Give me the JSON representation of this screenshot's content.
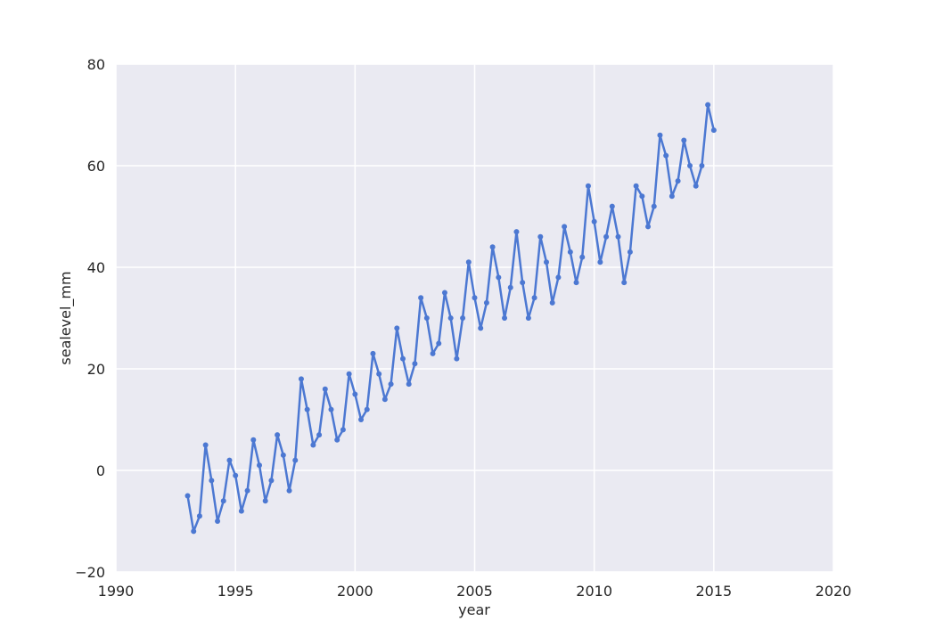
{
  "chart_data": {
    "type": "line",
    "x_label": "year",
    "y_label": "sealevel_mm",
    "xlim": [
      1990,
      2020
    ],
    "xticks": [
      1990,
      1995,
      2000,
      2005,
      2010,
      2015,
      2020
    ],
    "ylim": [
      -20,
      80
    ],
    "yticks": [
      {
        "value": -20,
        "label": "−20"
      },
      0,
      20,
      40,
      60,
      80
    ],
    "grid": true,
    "markers": true,
    "x": [
      1993.0,
      1993.25,
      1993.5,
      1993.75,
      1994.0,
      1994.25,
      1994.5,
      1994.75,
      1995.0,
      1995.25,
      1995.5,
      1995.75,
      1996.0,
      1996.25,
      1996.5,
      1996.75,
      1997.0,
      1997.25,
      1997.5,
      1997.75,
      1998.0,
      1998.25,
      1998.5,
      1998.75,
      1999.0,
      1999.25,
      1999.5,
      1999.75,
      2000.0,
      2000.25,
      2000.5,
      2000.75,
      2001.0,
      2001.25,
      2001.5,
      2001.75,
      2002.0,
      2002.25,
      2002.5,
      2002.75,
      2003.0,
      2003.25,
      2003.5,
      2003.75,
      2004.0,
      2004.25,
      2004.5,
      2004.75,
      2005.0,
      2005.25,
      2005.5,
      2005.75,
      2006.0,
      2006.25,
      2006.5,
      2006.75,
      2007.0,
      2007.25,
      2007.5,
      2007.75,
      2008.0,
      2008.25,
      2008.5,
      2008.75,
      2009.0,
      2009.25,
      2009.5,
      2009.75,
      2010.0,
      2010.25,
      2010.5,
      2010.75,
      2011.0,
      2011.25,
      2011.5,
      2011.75,
      2012.0,
      2012.25,
      2012.5,
      2012.75,
      2013.0,
      2013.25,
      2013.5,
      2013.75,
      2014.0,
      2014.25,
      2014.5,
      2014.75,
      2015.0
    ],
    "series": [
      {
        "name": "sealevel_mm",
        "color": "#4c78d2",
        "values": [
          -5,
          -12,
          -9,
          5,
          -2,
          -10,
          -6,
          2,
          -1,
          -8,
          -4,
          6,
          1,
          -6,
          -2,
          7,
          3,
          -4,
          2,
          18,
          12,
          5,
          7,
          16,
          12,
          6,
          8,
          19,
          15,
          10,
          12,
          23,
          19,
          14,
          17,
          28,
          22,
          17,
          21,
          34,
          30,
          23,
          25,
          35,
          30,
          22,
          30,
          41,
          34,
          28,
          33,
          44,
          38,
          30,
          36,
          47,
          37,
          30,
          34,
          46,
          41,
          33,
          38,
          48,
          43,
          37,
          42,
          56,
          49,
          41,
          46,
          52,
          46,
          37,
          43,
          56,
          54,
          48,
          52,
          66,
          62,
          54,
          57,
          65,
          60,
          56,
          60,
          72,
          67
        ]
      }
    ]
  }
}
